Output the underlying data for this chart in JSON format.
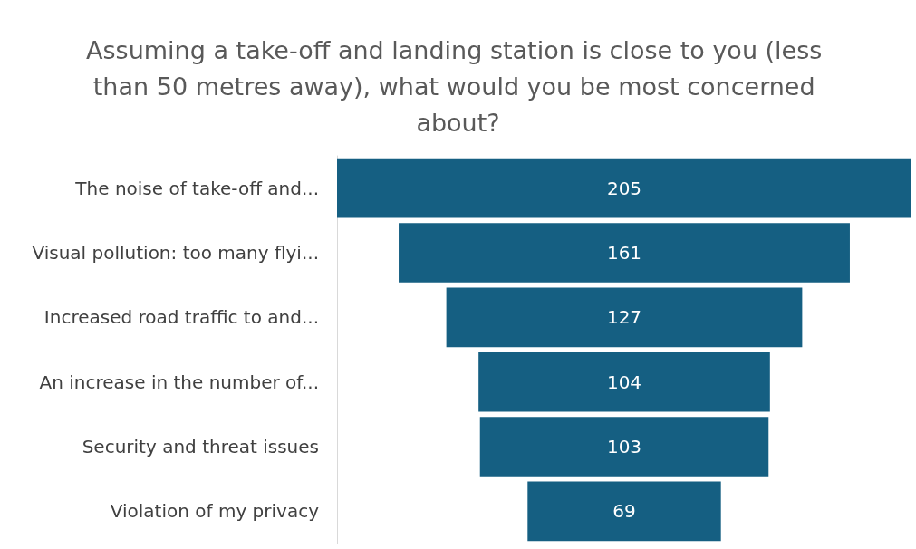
{
  "chart_data": {
    "type": "other",
    "title": "Assuming a take-off and landing station is close to you (less than 50 metres away), what would you be most concerned about?",
    "categories": [
      "The noise of take-off and...",
      "Visual pollution: too many flyi...",
      "Increased road traffic to and...",
      "An increase in the number of...",
      "Security and threat issues",
      "Violation of my privacy"
    ],
    "values": [
      205,
      161,
      127,
      104,
      103,
      69
    ],
    "color": "#155f82",
    "data_labels": true
  }
}
